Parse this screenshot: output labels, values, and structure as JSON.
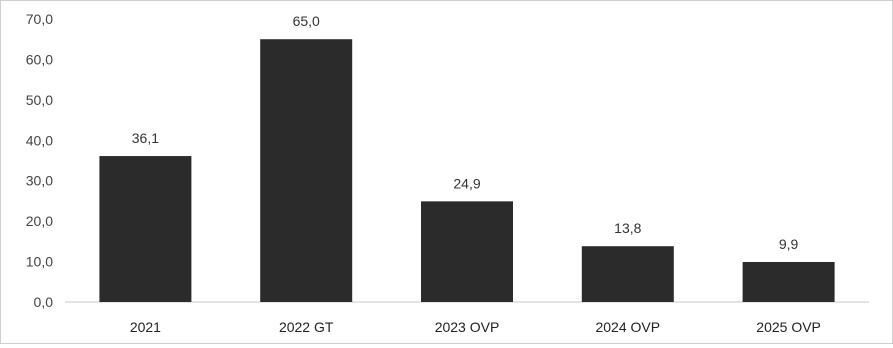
{
  "chart_data": {
    "type": "bar",
    "categories": [
      "2021",
      "2022 GT",
      "2023 OVP",
      "2024 OVP",
      "2025 OVP"
    ],
    "values": [
      36.1,
      65.0,
      24.9,
      13.8,
      9.9
    ],
    "value_labels": [
      "36,1",
      "65,0",
      "24,9",
      "13,8",
      "9,9"
    ],
    "ylim": [
      0,
      70
    ],
    "yticks": [
      "0,0",
      "10,0",
      "20,0",
      "30,0",
      "40,0",
      "50,0",
      "60,0",
      "70,0"
    ],
    "grid": false,
    "legend": "none",
    "bar_color": "#2b2b2b",
    "title": "",
    "xlabel": "",
    "ylabel": ""
  }
}
